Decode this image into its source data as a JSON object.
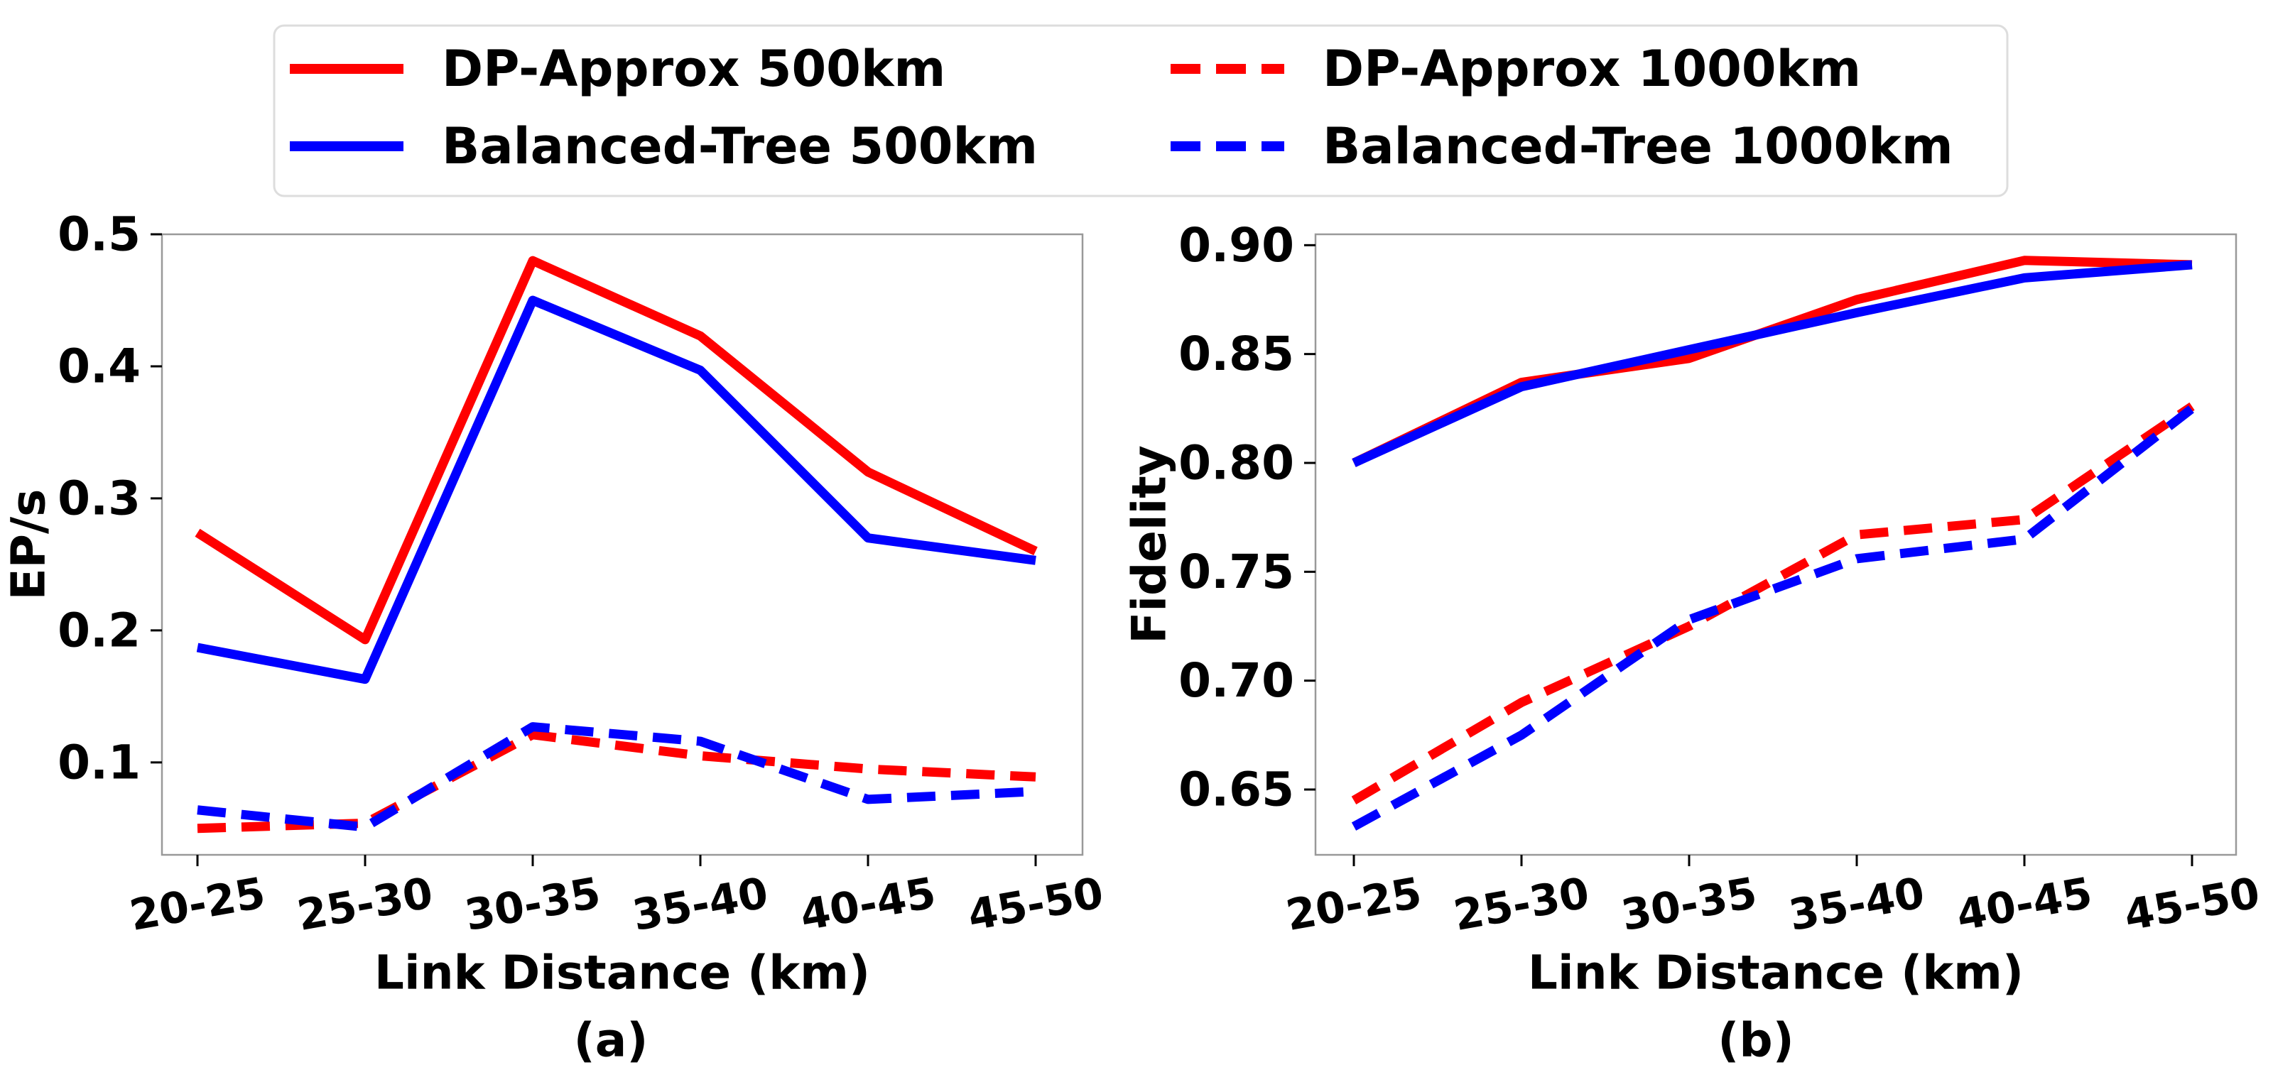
{
  "legend": {
    "items": [
      {
        "label": "DP-Approx 500km",
        "color": "#ff0000",
        "dash": "solid"
      },
      {
        "label": "DP-Approx 1000km",
        "color": "#ff0000",
        "dash": "dashed"
      },
      {
        "label": "Balanced-Tree 500km",
        "color": "#0000ff",
        "dash": "solid"
      },
      {
        "label": "Balanced-Tree 1000km",
        "color": "#0000ff",
        "dash": "dashed"
      }
    ]
  },
  "chart_data": [
    {
      "type": "line",
      "caption": "(a)",
      "xlabel": "Link Distance (km)",
      "ylabel": "EP/s",
      "categories": [
        "20-25",
        "25-30",
        "30-35",
        "35-40",
        "40-45",
        "45-50"
      ],
      "ylim": [
        0.03,
        0.5
      ],
      "yticks": [
        "0.1",
        "0.2",
        "0.3",
        "0.4",
        "0.5"
      ],
      "grid": false,
      "series": [
        {
          "name": "DP-Approx 500km",
          "color": "#ff0000",
          "dash": "solid",
          "values": [
            0.274,
            0.193,
            0.48,
            0.423,
            0.32,
            0.26
          ]
        },
        {
          "name": "Balanced-Tree 500km",
          "color": "#0000ff",
          "dash": "solid",
          "values": [
            0.187,
            0.163,
            0.45,
            0.397,
            0.27,
            0.253
          ]
        },
        {
          "name": "DP-Approx 1000km",
          "color": "#ff0000",
          "dash": "dashed",
          "values": [
            0.05,
            0.054,
            0.121,
            0.105,
            0.095,
            0.089
          ]
        },
        {
          "name": "Balanced-Tree 1000km",
          "color": "#0000ff",
          "dash": "dashed",
          "values": [
            0.064,
            0.051,
            0.127,
            0.116,
            0.072,
            0.078
          ]
        }
      ]
    },
    {
      "type": "line",
      "caption": "(b)",
      "xlabel": "Link Distance (km)",
      "ylabel": "Fidelity",
      "categories": [
        "20-25",
        "25-30",
        "30-35",
        "35-40",
        "40-45",
        "45-50"
      ],
      "ylim": [
        0.62,
        0.905
      ],
      "yticks": [
        "0.65",
        "0.70",
        "0.75",
        "0.80",
        "0.85",
        "0.90"
      ],
      "grid": false,
      "series": [
        {
          "name": "DP-Approx 500km",
          "color": "#ff0000",
          "dash": "solid",
          "values": [
            0.8,
            0.837,
            0.848,
            0.875,
            0.893,
            0.891
          ]
        },
        {
          "name": "Balanced-Tree 500km",
          "color": "#0000ff",
          "dash": "solid",
          "values": [
            0.8,
            0.835,
            0.852,
            0.869,
            0.885,
            0.891
          ]
        },
        {
          "name": "DP-Approx 1000km",
          "color": "#ff0000",
          "dash": "dashed",
          "values": [
            0.645,
            0.69,
            0.725,
            0.767,
            0.774,
            0.826
          ]
        },
        {
          "name": "Balanced-Tree 1000km",
          "color": "#0000ff",
          "dash": "dashed",
          "values": [
            0.633,
            0.675,
            0.728,
            0.756,
            0.765,
            0.825
          ]
        }
      ]
    }
  ]
}
